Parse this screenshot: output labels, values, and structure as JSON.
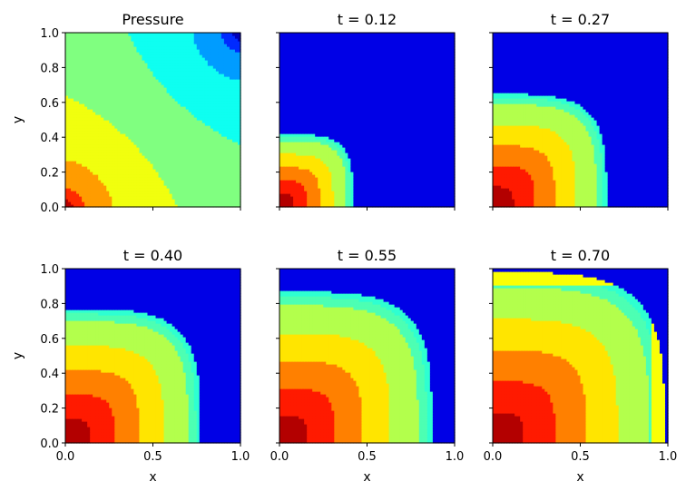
{
  "chart_data": [
    {
      "type": "heatmap",
      "title": "Pressure",
      "field": "pressure",
      "colormap": "jet",
      "ylabel": "y",
      "xlabel": "",
      "xlim": [
        0.0,
        1.0
      ],
      "ylim": [
        0.0,
        1.0
      ],
      "yticks": [
        "0.0",
        "0.2",
        "0.4",
        "0.6",
        "0.8",
        "1.0"
      ],
      "xticks": []
    },
    {
      "type": "heatmap",
      "title": "t = 0.12",
      "field": "saturation",
      "front": 0.42,
      "colormap": "jet",
      "ylabel": "",
      "xlabel": "",
      "xlim": [
        0.0,
        1.0
      ],
      "ylim": [
        0.0,
        1.0
      ],
      "yticks": [],
      "xticks": []
    },
    {
      "type": "heatmap",
      "title": "t = 0.27",
      "field": "saturation",
      "front": 0.65,
      "colormap": "jet",
      "ylabel": "",
      "xlabel": "",
      "xlim": [
        0.0,
        1.0
      ],
      "ylim": [
        0.0,
        1.0
      ],
      "yticks": [],
      "xticks": []
    },
    {
      "type": "heatmap",
      "title": "t = 0.40",
      "field": "saturation",
      "front": 0.77,
      "colormap": "jet",
      "ylabel": "y",
      "xlabel": "x",
      "xlim": [
        0.0,
        1.0
      ],
      "ylim": [
        0.0,
        1.0
      ],
      "yticks": [
        "0.0",
        "0.2",
        "0.4",
        "0.6",
        "0.8",
        "1.0"
      ],
      "xticks": [
        "0.0",
        "0.5",
        "1.0"
      ]
    },
    {
      "type": "heatmap",
      "title": "t = 0.55",
      "field": "saturation",
      "front": 0.87,
      "colormap": "jet",
      "ylabel": "",
      "xlabel": "x",
      "xlim": [
        0.0,
        1.0
      ],
      "ylim": [
        0.0,
        1.0
      ],
      "yticks": [],
      "xticks": [
        "0.0",
        "0.5",
        "1.0"
      ]
    },
    {
      "type": "heatmap",
      "title": "t = 0.70",
      "field": "saturation",
      "front": 0.98,
      "colormap": "jet",
      "ylabel": "",
      "xlabel": "x",
      "xlim": [
        0.0,
        1.0
      ],
      "ylim": [
        0.0,
        1.0
      ],
      "yticks": [],
      "xticks": [
        "0.0",
        "0.5",
        "1.0"
      ]
    }
  ]
}
